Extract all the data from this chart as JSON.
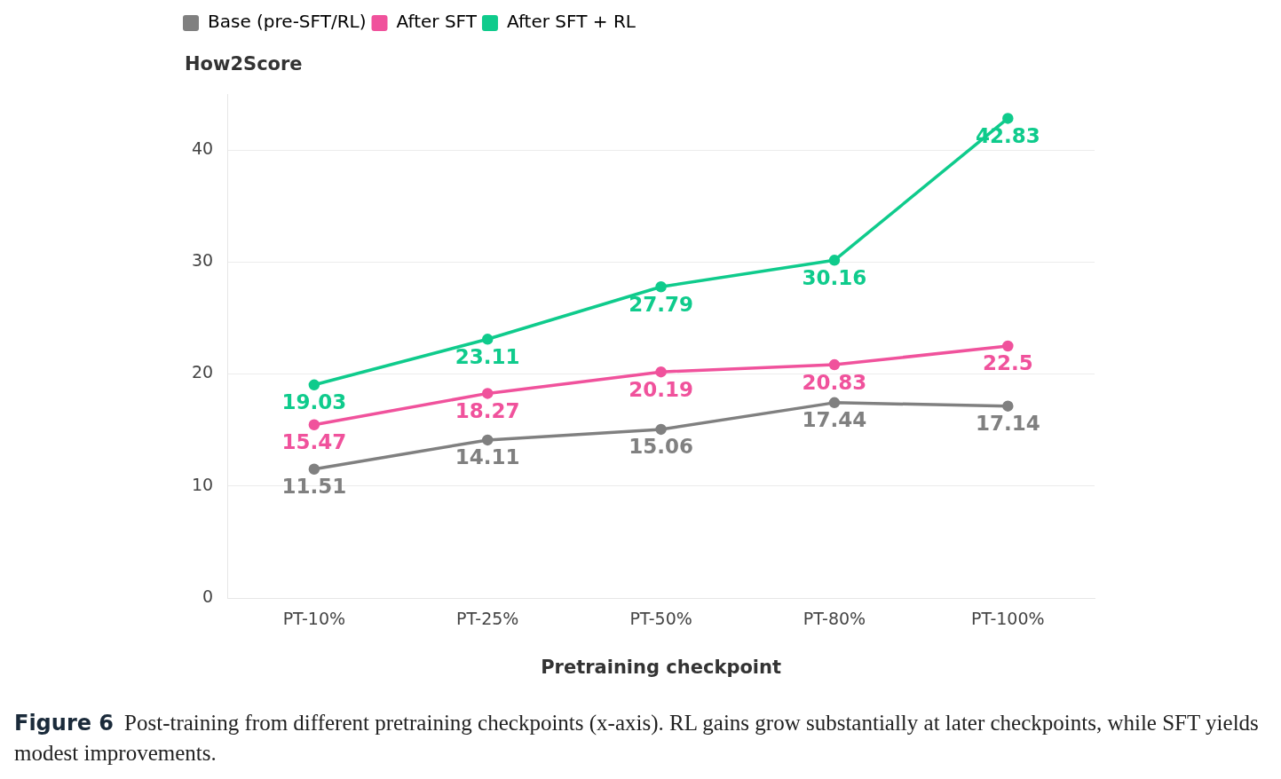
{
  "chart_data": {
    "type": "line",
    "ylabel": "How2Score",
    "xlabel": "Pretraining checkpoint",
    "categories": [
      "PT-10%",
      "PT-25%",
      "PT-50%",
      "PT-80%",
      "PT-100%"
    ],
    "series": [
      {
        "name": "Base (pre-SFT/RL)",
        "color": "#808080",
        "values": [
          11.51,
          14.11,
          15.06,
          17.44,
          17.14
        ]
      },
      {
        "name": "After SFT",
        "color": "#f0529c",
        "values": [
          15.47,
          18.27,
          20.19,
          20.83,
          22.5
        ]
      },
      {
        "name": "After SFT + RL",
        "color": "#0fcb8c",
        "values": [
          19.03,
          23.11,
          27.79,
          30.16,
          42.83
        ]
      }
    ],
    "ylim": [
      0,
      45
    ],
    "yticks": [
      0,
      10,
      20,
      30,
      40
    ],
    "grid": "y",
    "legend": "top left",
    "marker": "circle",
    "line_style": "solid",
    "data_labels": true,
    "annotations": [
      "Figure 6",
      "Post-training from different pretraining checkpoints (x-axis). RL gains grow substantially at later checkpoints, while SFT yields modest improvements."
    ]
  }
}
